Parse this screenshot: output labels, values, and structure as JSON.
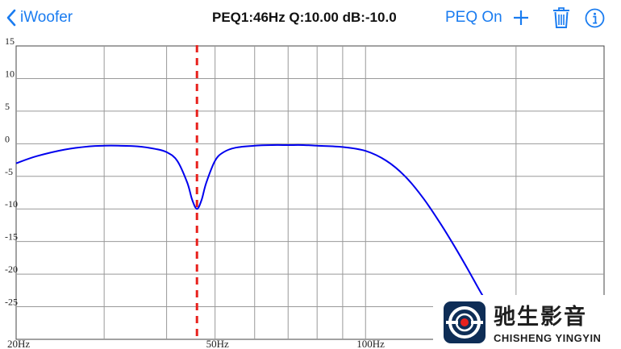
{
  "nav": {
    "back_label": "iWoofer",
    "title": "PEQ1:46Hz Q:10.00 dB:-10.0",
    "peq_toggle": "PEQ On",
    "add_icon": "plus-icon",
    "trash_icon": "trash-icon",
    "info_icon": "info-icon",
    "accent_color": "#1a7cf0"
  },
  "chart_data": {
    "type": "line",
    "title": "",
    "xlabel": "",
    "ylabel": "",
    "x_scale": "log",
    "xlim": [
      20,
      300
    ],
    "ylim": [
      -30,
      15
    ],
    "y_ticks": [
      {
        "value": 15,
        "label": "15"
      },
      {
        "value": 10,
        "label": "10"
      },
      {
        "value": 5,
        "label": "5"
      },
      {
        "value": 0,
        "label": "0"
      },
      {
        "value": -5,
        "label": "-5"
      },
      {
        "value": -10,
        "label": "-10"
      },
      {
        "value": -15,
        "label": "-15"
      },
      {
        "value": -20,
        "label": "-20"
      },
      {
        "value": -25,
        "label": "-25"
      }
    ],
    "x_ticks": [
      {
        "value": 20,
        "label": "20Hz"
      },
      {
        "value": 50,
        "label": "50Hz"
      },
      {
        "value": 100,
        "label": "100Hz"
      }
    ],
    "grid": true,
    "series": [
      {
        "color": "#0000ee",
        "x": [
          20,
          22,
          25,
          28,
          30,
          32,
          35,
          38,
          40,
          42,
          44,
          45,
          46,
          47,
          48,
          50,
          52,
          55,
          60,
          65,
          70,
          75,
          80,
          90,
          100,
          110,
          120,
          130,
          140,
          150,
          160,
          170,
          180
        ],
        "y": [
          -3.0,
          -1.9,
          -0.9,
          -0.4,
          -0.3,
          -0.3,
          -0.4,
          -0.8,
          -1.3,
          -2.6,
          -6.0,
          -8.6,
          -10.0,
          -8.6,
          -6.0,
          -2.6,
          -1.3,
          -0.6,
          -0.3,
          -0.2,
          -0.2,
          -0.2,
          -0.3,
          -0.5,
          -1.1,
          -2.6,
          -5.0,
          -8.2,
          -11.8,
          -15.5,
          -19.2,
          -22.8,
          -26.0
        ]
      }
    ],
    "marker": {
      "frequency": 46,
      "color": "#e8211d"
    }
  },
  "watermark": {
    "title": "驰生影音",
    "subtitle": "CHISHENG YINGYIN"
  }
}
